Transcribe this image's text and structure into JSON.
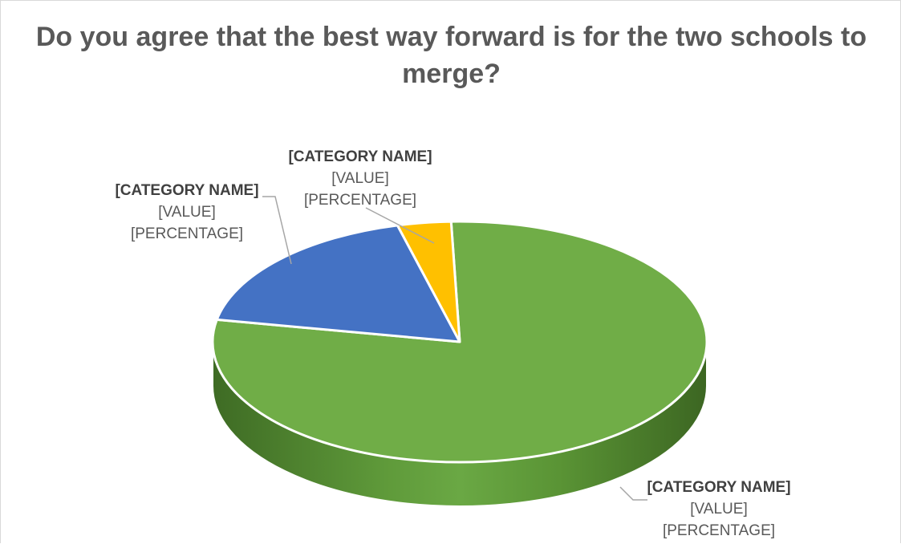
{
  "chart_data": {
    "type": "pie",
    "style": "3d",
    "title": "Do you agree that the best way forward is for the two schools to merge?",
    "slices": [
      {
        "category": "[CATEGORY NAME]",
        "value": "[VALUE]",
        "percentage": "[PERCENTAGE]",
        "share": 0.785,
        "color": "#70ad47",
        "side_color": "#4d7f2e"
      },
      {
        "category": "[CATEGORY NAME]",
        "value": "[VALUE]",
        "percentage": "[PERCENTAGE]",
        "share": 0.18,
        "color": "#4472c4",
        "side_color": "#2f5597"
      },
      {
        "category": "[CATEGORY NAME]",
        "value": "[VALUE]",
        "percentage": "[PERCENTAGE]",
        "share": 0.035,
        "color": "#ffc000",
        "side_color": "#bf9000"
      }
    ],
    "legend": "none",
    "data_labels": "outside-with-leader-lines"
  }
}
